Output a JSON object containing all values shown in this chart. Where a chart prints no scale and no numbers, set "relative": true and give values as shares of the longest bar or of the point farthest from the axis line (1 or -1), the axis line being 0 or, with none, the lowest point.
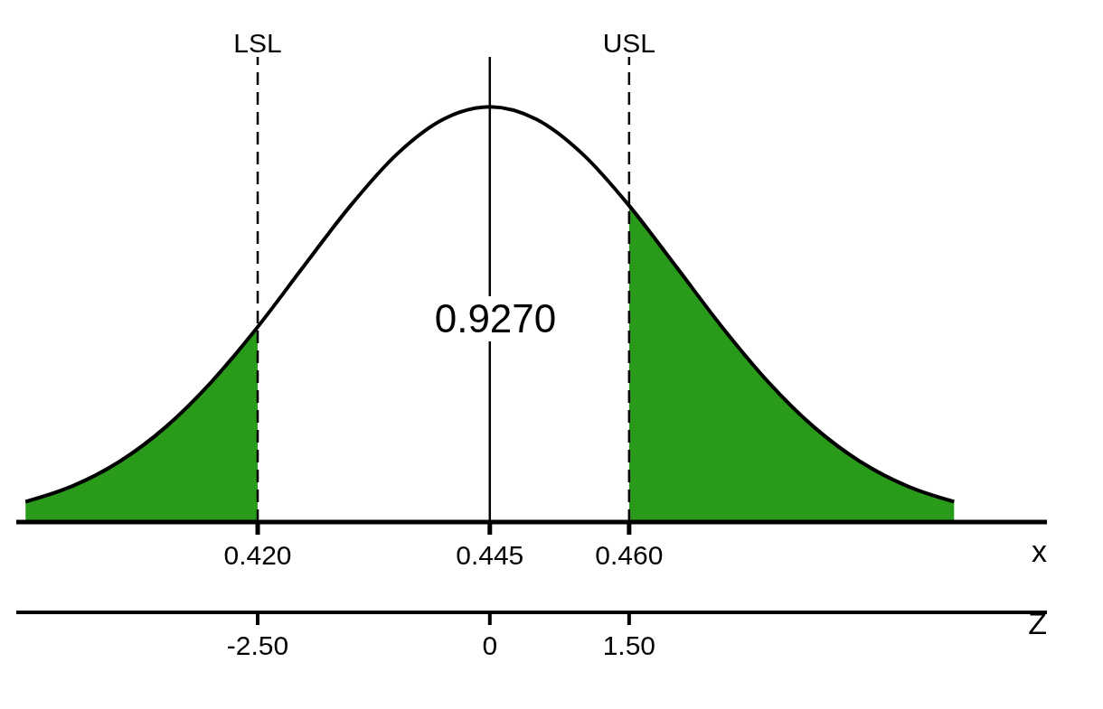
{
  "chart_data": {
    "type": "line",
    "relative": true,
    "x": [
      0.395,
      0.4,
      0.405,
      0.41,
      0.415,
      0.42,
      0.425,
      0.43,
      0.435,
      0.44,
      0.445,
      0.45,
      0.455,
      0.46,
      0.465,
      0.47,
      0.475,
      0.48,
      0.485,
      0.49,
      0.495
    ],
    "series": [
      {
        "type": "area",
        "color": "#2a9a1a",
        "values": [
          0.049,
          0.086,
          0.144,
          0.227,
          0.337,
          0.47,
          null,
          null,
          null,
          null,
          null,
          null,
          null,
          0.762,
          0.617,
          0.47,
          0.337,
          0.227,
          0.144,
          0.086,
          0.049
        ]
      },
      {
        "color": "#000000",
        "values": [
          0.049,
          0.086,
          0.144,
          0.227,
          0.337,
          0.47,
          0.617,
          0.762,
          0.886,
          0.97,
          1,
          0.97,
          0.886,
          0.762,
          0.617,
          0.47,
          0.337,
          0.227,
          0.144,
          0.086,
          0.049
        ]
      }
    ],
    "xlim": [
      0.394,
      0.505
    ],
    "xticks": [
      {
        "value": 0.42,
        "label": "0.420"
      },
      {
        "value": 0.445,
        "label": "0.445"
      },
      {
        "value": 0.46,
        "label": "0.460"
      }
    ],
    "xlabel": "x",
    "x2lim": [
      -5.1,
      6.0
    ],
    "x2ticks": [
      {
        "value": -2.5,
        "label": "-2.50"
      },
      0,
      {
        "value": 1.5,
        "label": "1.50"
      }
    ],
    "x2label": "Z",
    "ref_lines": [
      {
        "axis": "x",
        "value": 0.42,
        "label": "LSL",
        "line_style": "dashed"
      },
      {
        "axis": "x",
        "value": 0.46,
        "label": "USL",
        "line_style": "dashed"
      },
      {
        "axis": "x",
        "value": 0.445,
        "line_style": "solid"
      }
    ],
    "annotations": [
      "0.9270"
    ]
  }
}
